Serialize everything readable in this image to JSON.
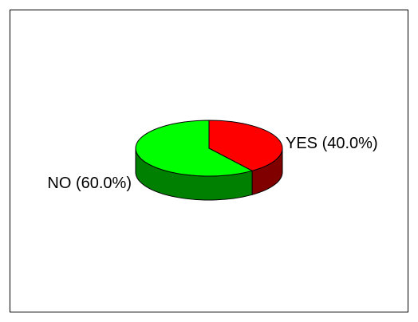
{
  "chart_data": {
    "type": "pie",
    "categories": [
      "YES",
      "NO"
    ],
    "values": [
      40.0,
      60.0
    ],
    "labels": [
      "YES (40.0%)",
      "NO (60.0%)"
    ],
    "colors": [
      "#ff0000",
      "#00ff00"
    ],
    "side_colors": [
      "#800000",
      "#008000"
    ],
    "style": "3d",
    "legend": "none"
  }
}
